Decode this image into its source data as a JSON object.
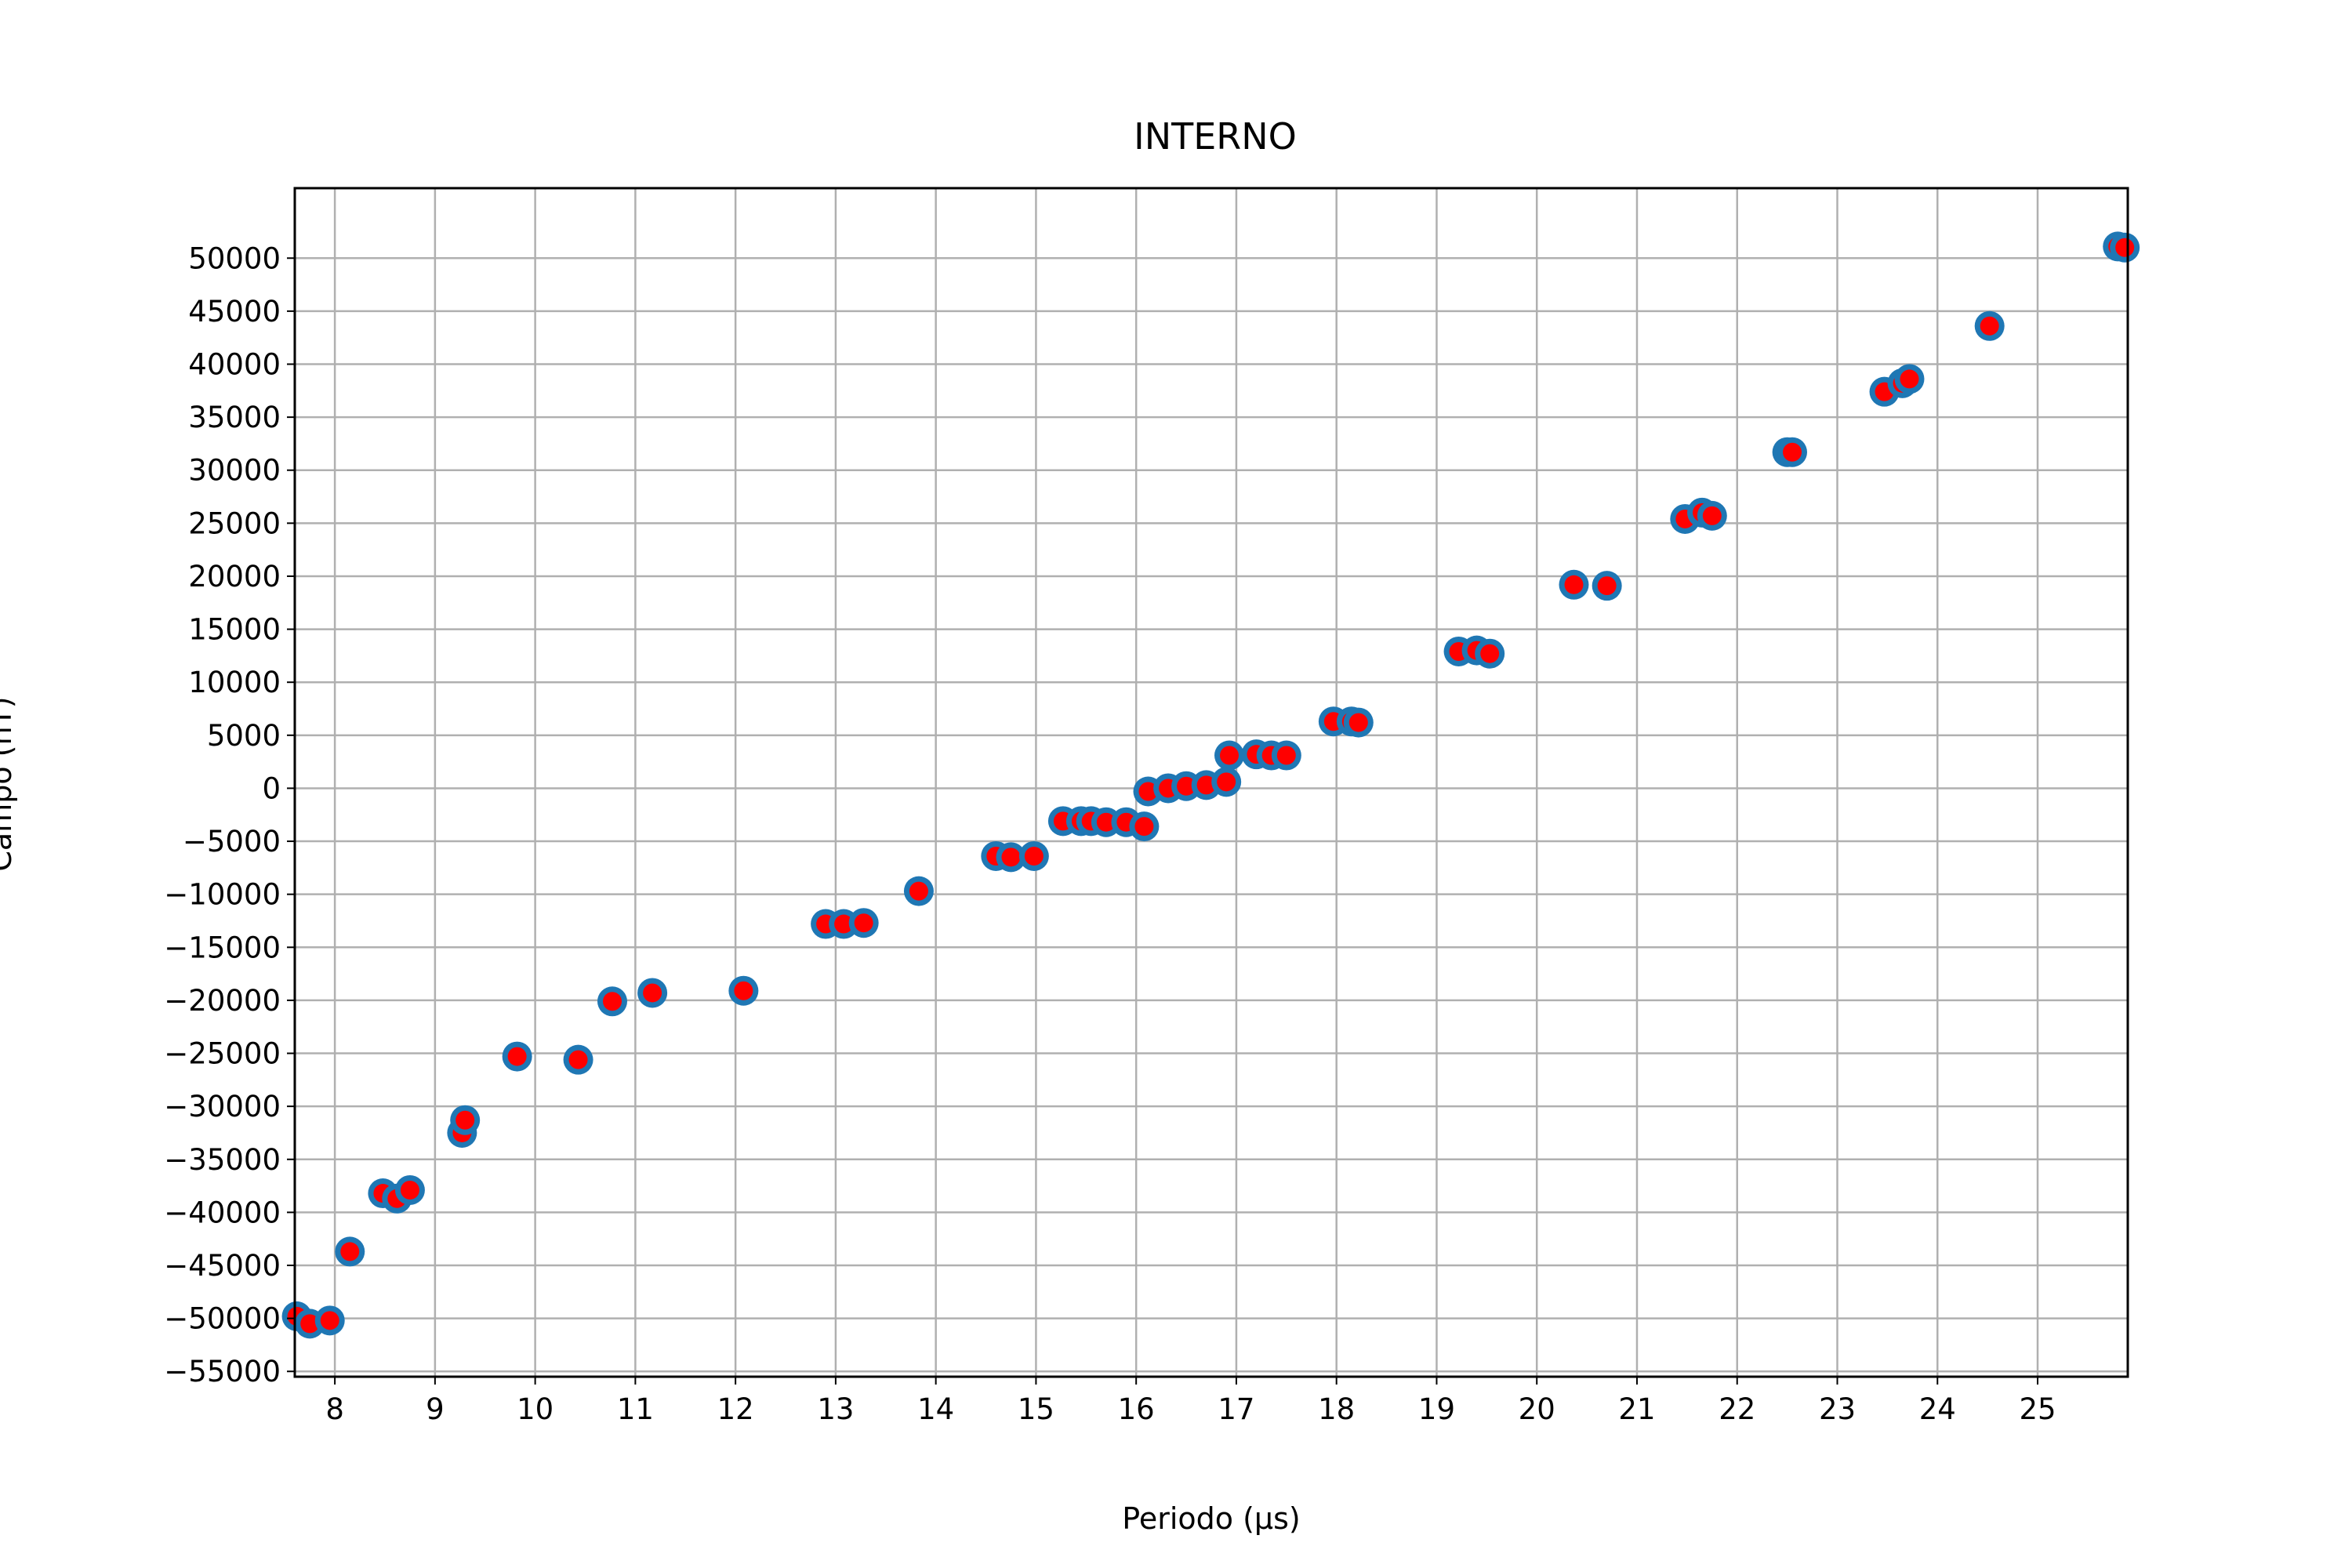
{
  "chart_data": {
    "type": "scatter",
    "title": "INTERNO",
    "xlabel": "Periodo (μs)",
    "ylabel": "Campo (nT)",
    "xlim": [
      7.6,
      25.9
    ],
    "ylim": [
      -55500,
      56600
    ],
    "xticks": [
      8,
      9,
      10,
      11,
      12,
      13,
      14,
      15,
      16,
      17,
      18,
      19,
      20,
      21,
      22,
      23,
      24,
      25
    ],
    "yticks": [
      -55000,
      -50000,
      -45000,
      -40000,
      -35000,
      -30000,
      -25000,
      -20000,
      -15000,
      -10000,
      -5000,
      0,
      5000,
      10000,
      15000,
      20000,
      25000,
      30000,
      35000,
      40000,
      45000,
      50000
    ],
    "grid": true,
    "marker": {
      "edge_color": "#1f77b4",
      "face_color": "#ff0000"
    },
    "x": [
      7.62,
      7.75,
      7.95,
      8.15,
      8.48,
      8.62,
      8.75,
      9.27,
      9.3,
      9.82,
      10.43,
      10.77,
      11.17,
      12.08,
      12.9,
      13.08,
      13.28,
      13.83,
      14.6,
      14.75,
      14.98,
      15.27,
      15.45,
      15.55,
      15.7,
      15.9,
      16.08,
      16.12,
      16.32,
      16.5,
      16.7,
      16.9,
      16.93,
      17.2,
      17.35,
      17.5,
      17.97,
      18.15,
      18.22,
      19.22,
      19.4,
      19.53,
      20.37,
      20.7,
      21.48,
      21.65,
      21.75,
      22.5,
      22.55,
      23.47,
      23.65,
      23.72,
      24.52,
      25.8,
      25.87
    ],
    "y": [
      -49800,
      -50500,
      -50200,
      -43700,
      -38200,
      -38700,
      -37900,
      -32500,
      -31300,
      -25300,
      -25600,
      -20100,
      -19300,
      -19100,
      -12800,
      -12800,
      -12700,
      -9700,
      -6400,
      -6500,
      -6400,
      -3100,
      -3100,
      -3100,
      -3200,
      -3200,
      -3600,
      -300,
      0,
      200,
      300,
      600,
      3100,
      3200,
      3100,
      3100,
      6300,
      6300,
      6200,
      12900,
      13000,
      12700,
      19200,
      19100,
      25400,
      26000,
      25700,
      31700,
      31700,
      37400,
      38200,
      38600,
      43600,
      51100,
      51000
    ]
  }
}
